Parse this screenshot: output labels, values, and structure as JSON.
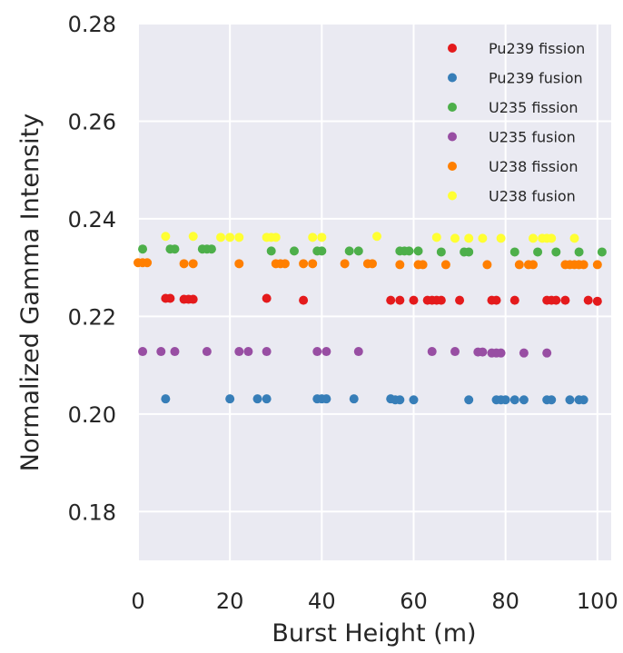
{
  "chart_data": {
    "type": "scatter",
    "title": "",
    "xlabel": "Burst Height (m)",
    "ylabel": "Normalized Gamma Intensity",
    "xlim": [
      0,
      103
    ],
    "ylim": [
      0.17,
      0.28
    ],
    "xticks": [
      0,
      20,
      40,
      60,
      80,
      100
    ],
    "yticks": [
      0.18,
      0.2,
      0.22,
      0.24,
      0.26,
      0.28
    ],
    "grid": true,
    "legend_position": "top-right",
    "background_color": "#EAEAF2",
    "series": [
      {
        "name": "Pu239 fission",
        "color": "#E41A1C",
        "points": [
          [
            6,
            0.2237
          ],
          [
            7,
            0.2237
          ],
          [
            10,
            0.2235
          ],
          [
            11,
            0.2235
          ],
          [
            12,
            0.2235
          ],
          [
            28,
            0.2237
          ],
          [
            36,
            0.2233
          ],
          [
            55,
            0.2233
          ],
          [
            57,
            0.2233
          ],
          [
            60,
            0.2233
          ],
          [
            63,
            0.2233
          ],
          [
            64,
            0.2233
          ],
          [
            65,
            0.2233
          ],
          [
            66,
            0.2233
          ],
          [
            70,
            0.2233
          ],
          [
            77,
            0.2233
          ],
          [
            78,
            0.2233
          ],
          [
            82,
            0.2233
          ],
          [
            89,
            0.2233
          ],
          [
            90,
            0.2233
          ],
          [
            91,
            0.2233
          ],
          [
            93,
            0.2233
          ],
          [
            98,
            0.2233
          ],
          [
            100,
            0.2231
          ]
        ]
      },
      {
        "name": "Pu239 fusion",
        "color": "#377EB8",
        "points": [
          [
            6,
            0.2031
          ],
          [
            20,
            0.2031
          ],
          [
            26,
            0.2031
          ],
          [
            28,
            0.2031
          ],
          [
            39,
            0.2031
          ],
          [
            40,
            0.2031
          ],
          [
            41,
            0.2031
          ],
          [
            47,
            0.2031
          ],
          [
            55,
            0.2031
          ],
          [
            56,
            0.2029
          ],
          [
            57,
            0.2029
          ],
          [
            60,
            0.2029
          ],
          [
            72,
            0.2029
          ],
          [
            78,
            0.2029
          ],
          [
            79,
            0.2029
          ],
          [
            80,
            0.2029
          ],
          [
            82,
            0.2029
          ],
          [
            84,
            0.2029
          ],
          [
            89,
            0.2029
          ],
          [
            90,
            0.2029
          ],
          [
            94,
            0.2029
          ],
          [
            96,
            0.2029
          ],
          [
            97,
            0.2029
          ]
        ]
      },
      {
        "name": "U235 fission",
        "color": "#4DAF4A",
        "points": [
          [
            1,
            0.2338
          ],
          [
            7,
            0.2338
          ],
          [
            8,
            0.2338
          ],
          [
            14,
            0.2338
          ],
          [
            15,
            0.2338
          ],
          [
            16,
            0.2338
          ],
          [
            29,
            0.2334
          ],
          [
            34,
            0.2334
          ],
          [
            39,
            0.2334
          ],
          [
            40,
            0.2334
          ],
          [
            46,
            0.2334
          ],
          [
            48,
            0.2334
          ],
          [
            57,
            0.2334
          ],
          [
            58,
            0.2334
          ],
          [
            59,
            0.2334
          ],
          [
            61,
            0.2334
          ],
          [
            66,
            0.2332
          ],
          [
            71,
            0.2332
          ],
          [
            72,
            0.2332
          ],
          [
            82,
            0.2332
          ],
          [
            87,
            0.2332
          ],
          [
            91,
            0.2332
          ],
          [
            96,
            0.2332
          ],
          [
            101,
            0.2332
          ]
        ]
      },
      {
        "name": "U235 fusion",
        "color": "#984EA3",
        "points": [
          [
            1,
            0.2128
          ],
          [
            5,
            0.2128
          ],
          [
            8,
            0.2128
          ],
          [
            15,
            0.2128
          ],
          [
            22,
            0.2128
          ],
          [
            24,
            0.2128
          ],
          [
            28,
            0.2128
          ],
          [
            39,
            0.2128
          ],
          [
            41,
            0.2128
          ],
          [
            48,
            0.2128
          ],
          [
            64,
            0.2128
          ],
          [
            69,
            0.2128
          ],
          [
            74,
            0.2127
          ],
          [
            75,
            0.2127
          ],
          [
            77,
            0.2125
          ],
          [
            78,
            0.2125
          ],
          [
            79,
            0.2125
          ],
          [
            84,
            0.2125
          ],
          [
            89,
            0.2125
          ]
        ]
      },
      {
        "name": "U238 fission",
        "color": "#FF7F00",
        "points": [
          [
            0,
            0.231
          ],
          [
            1,
            0.231
          ],
          [
            2,
            0.231
          ],
          [
            10,
            0.2308
          ],
          [
            12,
            0.2308
          ],
          [
            22,
            0.2308
          ],
          [
            30,
            0.2308
          ],
          [
            31,
            0.2308
          ],
          [
            32,
            0.2308
          ],
          [
            36,
            0.2308
          ],
          [
            38,
            0.2308
          ],
          [
            45,
            0.2308
          ],
          [
            50,
            0.2308
          ],
          [
            51,
            0.2308
          ],
          [
            57,
            0.2306
          ],
          [
            61,
            0.2306
          ],
          [
            62,
            0.2306
          ],
          [
            67,
            0.2306
          ],
          [
            76,
            0.2306
          ],
          [
            83,
            0.2306
          ],
          [
            85,
            0.2306
          ],
          [
            86,
            0.2306
          ],
          [
            93,
            0.2306
          ],
          [
            94,
            0.2306
          ],
          [
            95,
            0.2306
          ],
          [
            96,
            0.2306
          ],
          [
            97,
            0.2306
          ],
          [
            100,
            0.2306
          ]
        ]
      },
      {
        "name": "U238 fusion",
        "color": "#FFFF33",
        "points": [
          [
            6,
            0.2364
          ],
          [
            12,
            0.2364
          ],
          [
            18,
            0.2362
          ],
          [
            20,
            0.2362
          ],
          [
            22,
            0.2362
          ],
          [
            28,
            0.2362
          ],
          [
            29,
            0.2362
          ],
          [
            30,
            0.2362
          ],
          [
            38,
            0.2362
          ],
          [
            40,
            0.2362
          ],
          [
            52,
            0.2364
          ],
          [
            65,
            0.2362
          ],
          [
            69,
            0.236
          ],
          [
            72,
            0.236
          ],
          [
            75,
            0.236
          ],
          [
            79,
            0.236
          ],
          [
            86,
            0.236
          ],
          [
            88,
            0.236
          ],
          [
            89,
            0.236
          ],
          [
            90,
            0.236
          ],
          [
            95,
            0.236
          ]
        ]
      }
    ]
  }
}
